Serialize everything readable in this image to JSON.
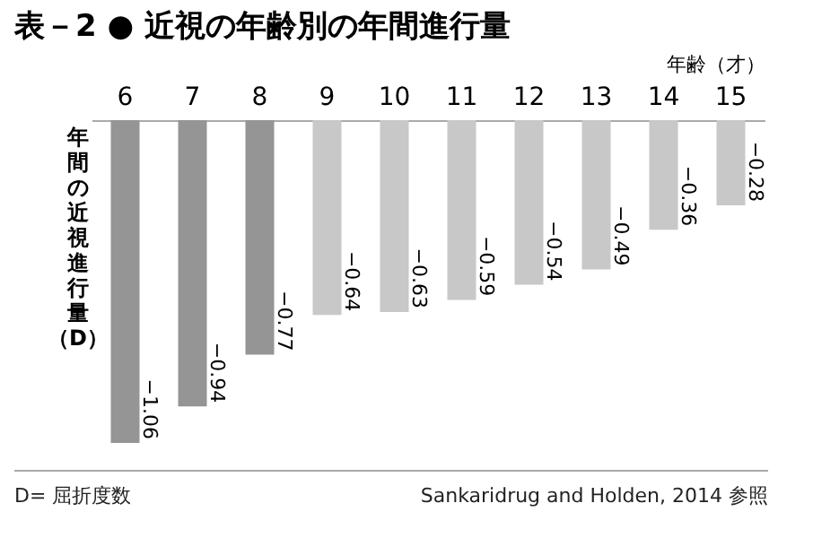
{
  "chart_data": {
    "type": "bar",
    "title": "表－2 ● 近視の年齢別の年間進行量",
    "xlabel": "年齢（才）",
    "ylabel": "年間の近視進行量（D）",
    "categories": [
      "6",
      "7",
      "8",
      "9",
      "10",
      "11",
      "12",
      "13",
      "14",
      "15"
    ],
    "values": [
      -1.06,
      -0.94,
      -0.77,
      -0.64,
      -0.63,
      -0.59,
      -0.54,
      -0.49,
      -0.36,
      -0.28
    ],
    "colors": [
      "#959595",
      "#959595",
      "#959595",
      "#c8c8c8",
      "#c8c8c8",
      "#c8c8c8",
      "#c8c8c8",
      "#c8c8c8",
      "#c8c8c8",
      "#c8c8c8"
    ],
    "data_labels": true,
    "annotations": [
      "D= 屈折度数",
      "Sankaridrug and Holden, 2014 参照"
    ]
  }
}
